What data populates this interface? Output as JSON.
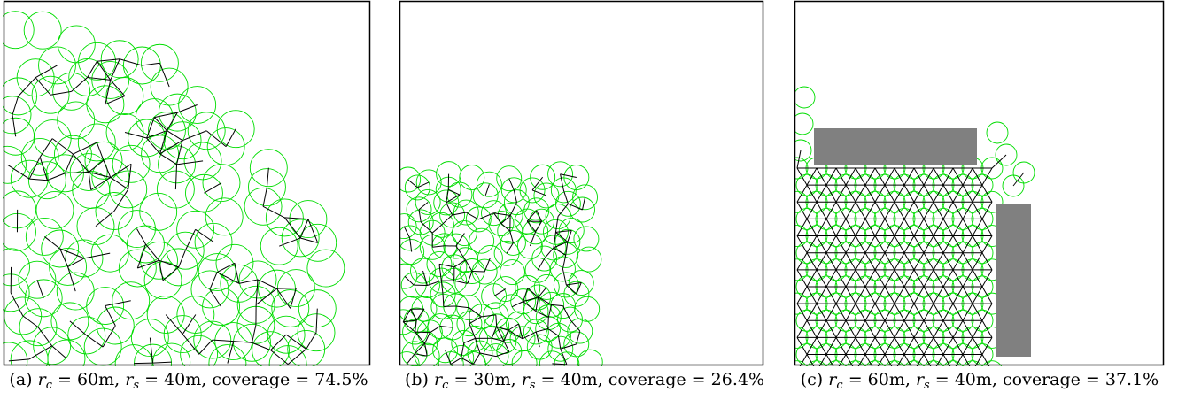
{
  "panels": [
    {
      "id": "a",
      "caption": {
        "label": "(a)",
        "rc_symbol": "r",
        "rc_sub": "c",
        "rc_value": "= 60m,",
        "rs_symbol": "r",
        "rs_sub": "s",
        "rs_value": "= 40m,",
        "coverage_text": "coverage = 74.5%"
      },
      "coverage_percent": 74.5,
      "obstacles": []
    },
    {
      "id": "b",
      "caption": {
        "label": "(b)",
        "rc_symbol": "r",
        "rc_sub": "c",
        "rc_value": "= 30m,",
        "rs_symbol": "r",
        "rs_sub": "s",
        "rs_value": "= 40m,",
        "coverage_text": "coverage = 26.4%"
      },
      "coverage_percent": 26.4,
      "obstacles": []
    },
    {
      "id": "c",
      "caption": {
        "label": "(c)",
        "rc_symbol": "r",
        "rc_sub": "c",
        "rc_value": "= 60m,",
        "rs_symbol": "r",
        "rs_sub": "s",
        "rs_value": "= 40m,",
        "coverage_text": "coverage = 37.1%"
      },
      "coverage_percent": 37.1,
      "obstacles": [
        "obstacle-horizontal",
        "obstacle-vertical"
      ]
    }
  ],
  "colors": {
    "sensing_circle": "#00dd00",
    "link": "#000000",
    "obstacle": "#808080",
    "frame": "#000000"
  }
}
